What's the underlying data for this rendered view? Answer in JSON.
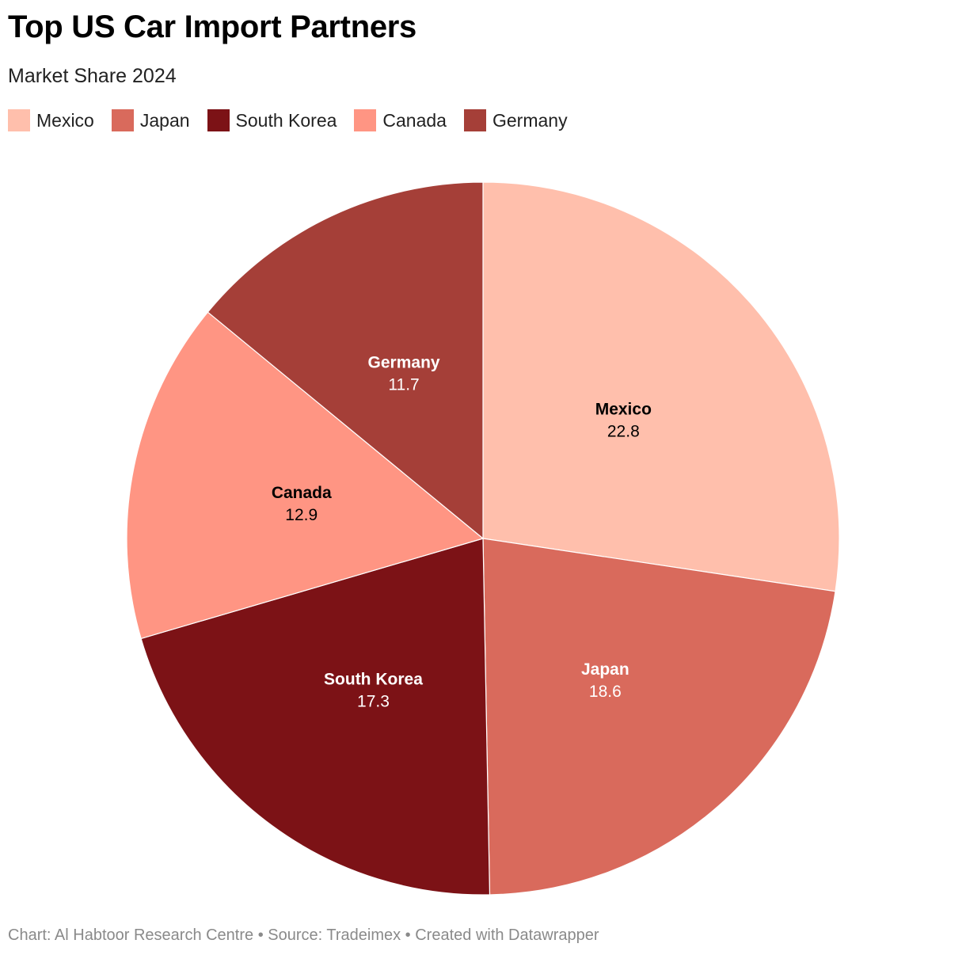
{
  "header": {
    "title": "Top US Car Import Partners",
    "subtitle": "Market Share 2024"
  },
  "footer": {
    "text": "Chart: Al Habtoor Research Centre • Source: Tradeimex • Created with Datawrapper"
  },
  "chart_data": {
    "type": "pie",
    "title": "Top US Car Import Partners",
    "subtitle": "Market Share 2024",
    "legend_placement": "top-left",
    "slices": [
      {
        "label": "Mexico",
        "value": 22.8,
        "color": "#ffbfac",
        "text_color": "#000000"
      },
      {
        "label": "Japan",
        "value": 18.6,
        "color": "#d96a5c",
        "text_color": "#ffffff"
      },
      {
        "label": "South Korea",
        "value": 17.3,
        "color": "#7c1216",
        "text_color": "#ffffff"
      },
      {
        "label": "Canada",
        "value": 12.9,
        "color": "#ff9583",
        "text_color": "#000000"
      },
      {
        "label": "Germany",
        "value": 11.7,
        "color": "#a53f38",
        "text_color": "#ffffff"
      }
    ]
  }
}
